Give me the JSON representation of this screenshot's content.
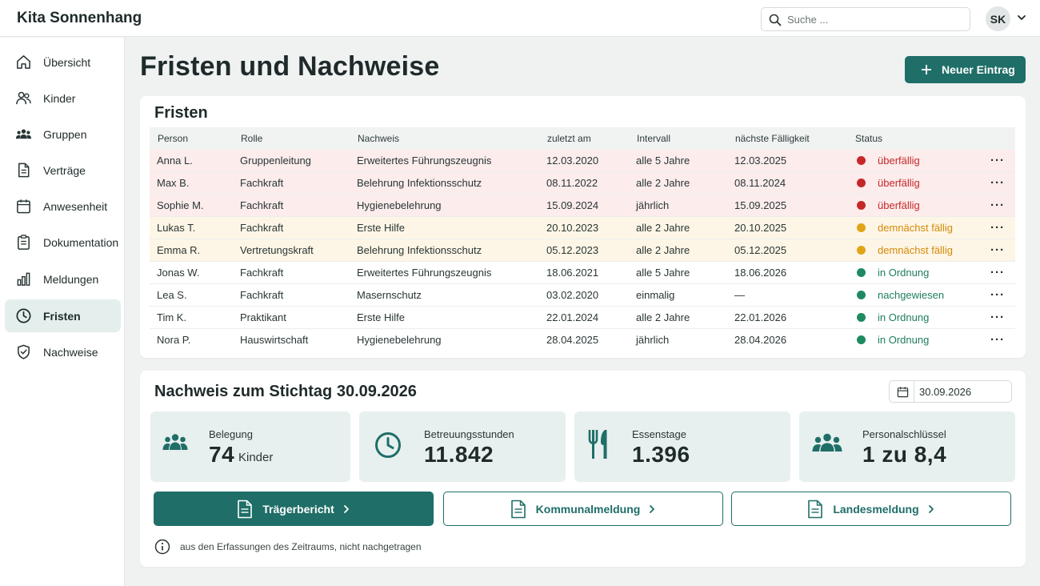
{
  "app": {
    "title": "Kita Sonnenhang"
  },
  "search": {
    "placeholder": "Suche ..."
  },
  "user": {
    "initials": "SK"
  },
  "sidebar": {
    "items": [
      {
        "label": "Übersicht",
        "icon": "home-icon",
        "active": false
      },
      {
        "label": "Kinder",
        "icon": "children-icon",
        "active": false
      },
      {
        "label": "Gruppen",
        "icon": "groups-icon",
        "active": false
      },
      {
        "label": "Verträge",
        "icon": "contract-icon",
        "active": false
      },
      {
        "label": "Anwesenheit",
        "icon": "calendar-icon",
        "active": false
      },
      {
        "label": "Dokumentation",
        "icon": "clipboard-icon",
        "active": false
      },
      {
        "label": "Meldungen",
        "icon": "bar-chart-icon",
        "active": false
      },
      {
        "label": "Fristen",
        "icon": "clock-icon",
        "active": true
      },
      {
        "label": "Nachweise",
        "icon": "shield-check-icon",
        "active": false
      }
    ]
  },
  "page": {
    "title": "Fristen und Nachweise",
    "new_entry_label": "Neuer Eintrag"
  },
  "deadlines": {
    "title": "Fristen",
    "columns": [
      "Person",
      "Rolle",
      "Nachweis",
      "zuletzt am",
      "Intervall",
      "nächste Fälligkeit",
      "Status"
    ],
    "rows": [
      {
        "person": "Anna L.",
        "role": "Gruppenleitung",
        "proof": "Erweitertes Führungszeugnis",
        "last": "12.03.2020",
        "interval": "alle 5 Jahre",
        "next": "12.03.2025",
        "status": "überfällig",
        "level": "red"
      },
      {
        "person": "Max B.",
        "role": "Fachkraft",
        "proof": "Belehrung Infektionsschutz",
        "last": "08.11.2022",
        "interval": "alle 2 Jahre",
        "next": "08.11.2024",
        "status": "überfällig",
        "level": "red"
      },
      {
        "person": "Sophie M.",
        "role": "Fachkraft",
        "proof": "Hygienebelehrung",
        "last": "15.09.2024",
        "interval": "jährlich",
        "next": "15.09.2025",
        "status": "überfällig",
        "level": "red"
      },
      {
        "person": "Lukas T.",
        "role": "Fachkraft",
        "proof": "Erste Hilfe",
        "last": "20.10.2023",
        "interval": "alle 2 Jahre",
        "next": "20.10.2025",
        "status": "demnächst fällig",
        "level": "amber"
      },
      {
        "person": "Emma R.",
        "role": "Vertretungskraft",
        "proof": "Belehrung Infektionsschutz",
        "last": "05.12.2023",
        "interval": "alle 2 Jahre",
        "next": "05.12.2025",
        "status": "demnächst fällig",
        "level": "amber"
      },
      {
        "person": "Jonas W.",
        "role": "Fachkraft",
        "proof": "Erweitertes Führungszeugnis",
        "last": "18.06.2021",
        "interval": "alle 5 Jahre",
        "next": "18.06.2026",
        "status": "in Ordnung",
        "level": "green"
      },
      {
        "person": "Lea S.",
        "role": "Fachkraft",
        "proof": "Masernschutz",
        "last": "03.02.2020",
        "interval": "einmalig",
        "next": "—",
        "status": "nachgewiesen",
        "level": "green"
      },
      {
        "person": "Tim K.",
        "role": "Praktikant",
        "proof": "Erste Hilfe",
        "last": "22.01.2024",
        "interval": "alle 2 Jahre",
        "next": "22.01.2026",
        "status": "in Ordnung",
        "level": "green"
      },
      {
        "person": "Nora P.",
        "role": "Hauswirtschaft",
        "proof": "Hygienebelehrung",
        "last": "28.04.2025",
        "interval": "jährlich",
        "next": "28.04.2026",
        "status": "in Ordnung",
        "level": "green"
      }
    ]
  },
  "report": {
    "title": "Nachweis zum Stichtag 30.09.2026",
    "date_value": "30.09.2026",
    "stats": [
      {
        "label": "Belegung",
        "value": "74",
        "unit": "Kinder",
        "icon": "group-icon"
      },
      {
        "label": "Betreuungsstunden",
        "value": "11.842",
        "unit": "",
        "icon": "clock-icon"
      },
      {
        "label": "Essenstage",
        "value": "1.396",
        "unit": "",
        "icon": "cutlery-icon"
      },
      {
        "label": "Personalschlüssel",
        "value": "1 zu 8,4",
        "unit": "",
        "icon": "staff-icon"
      }
    ],
    "buttons": [
      {
        "label": "Trägerbericht"
      },
      {
        "label": "Kommunalmeldung"
      },
      {
        "label": "Landesmeldung"
      }
    ],
    "note": "aus den Erfassungen des Zeitraums, nicht nachgetragen"
  },
  "colors": {
    "accent": "#1f6e68",
    "red": "#c62828",
    "amber": "#e0a416",
    "green": "#1f8a62",
    "red_row": "#fcecec",
    "amber_row": "#fdf6e6",
    "stat_bg": "#e7f0ef"
  }
}
